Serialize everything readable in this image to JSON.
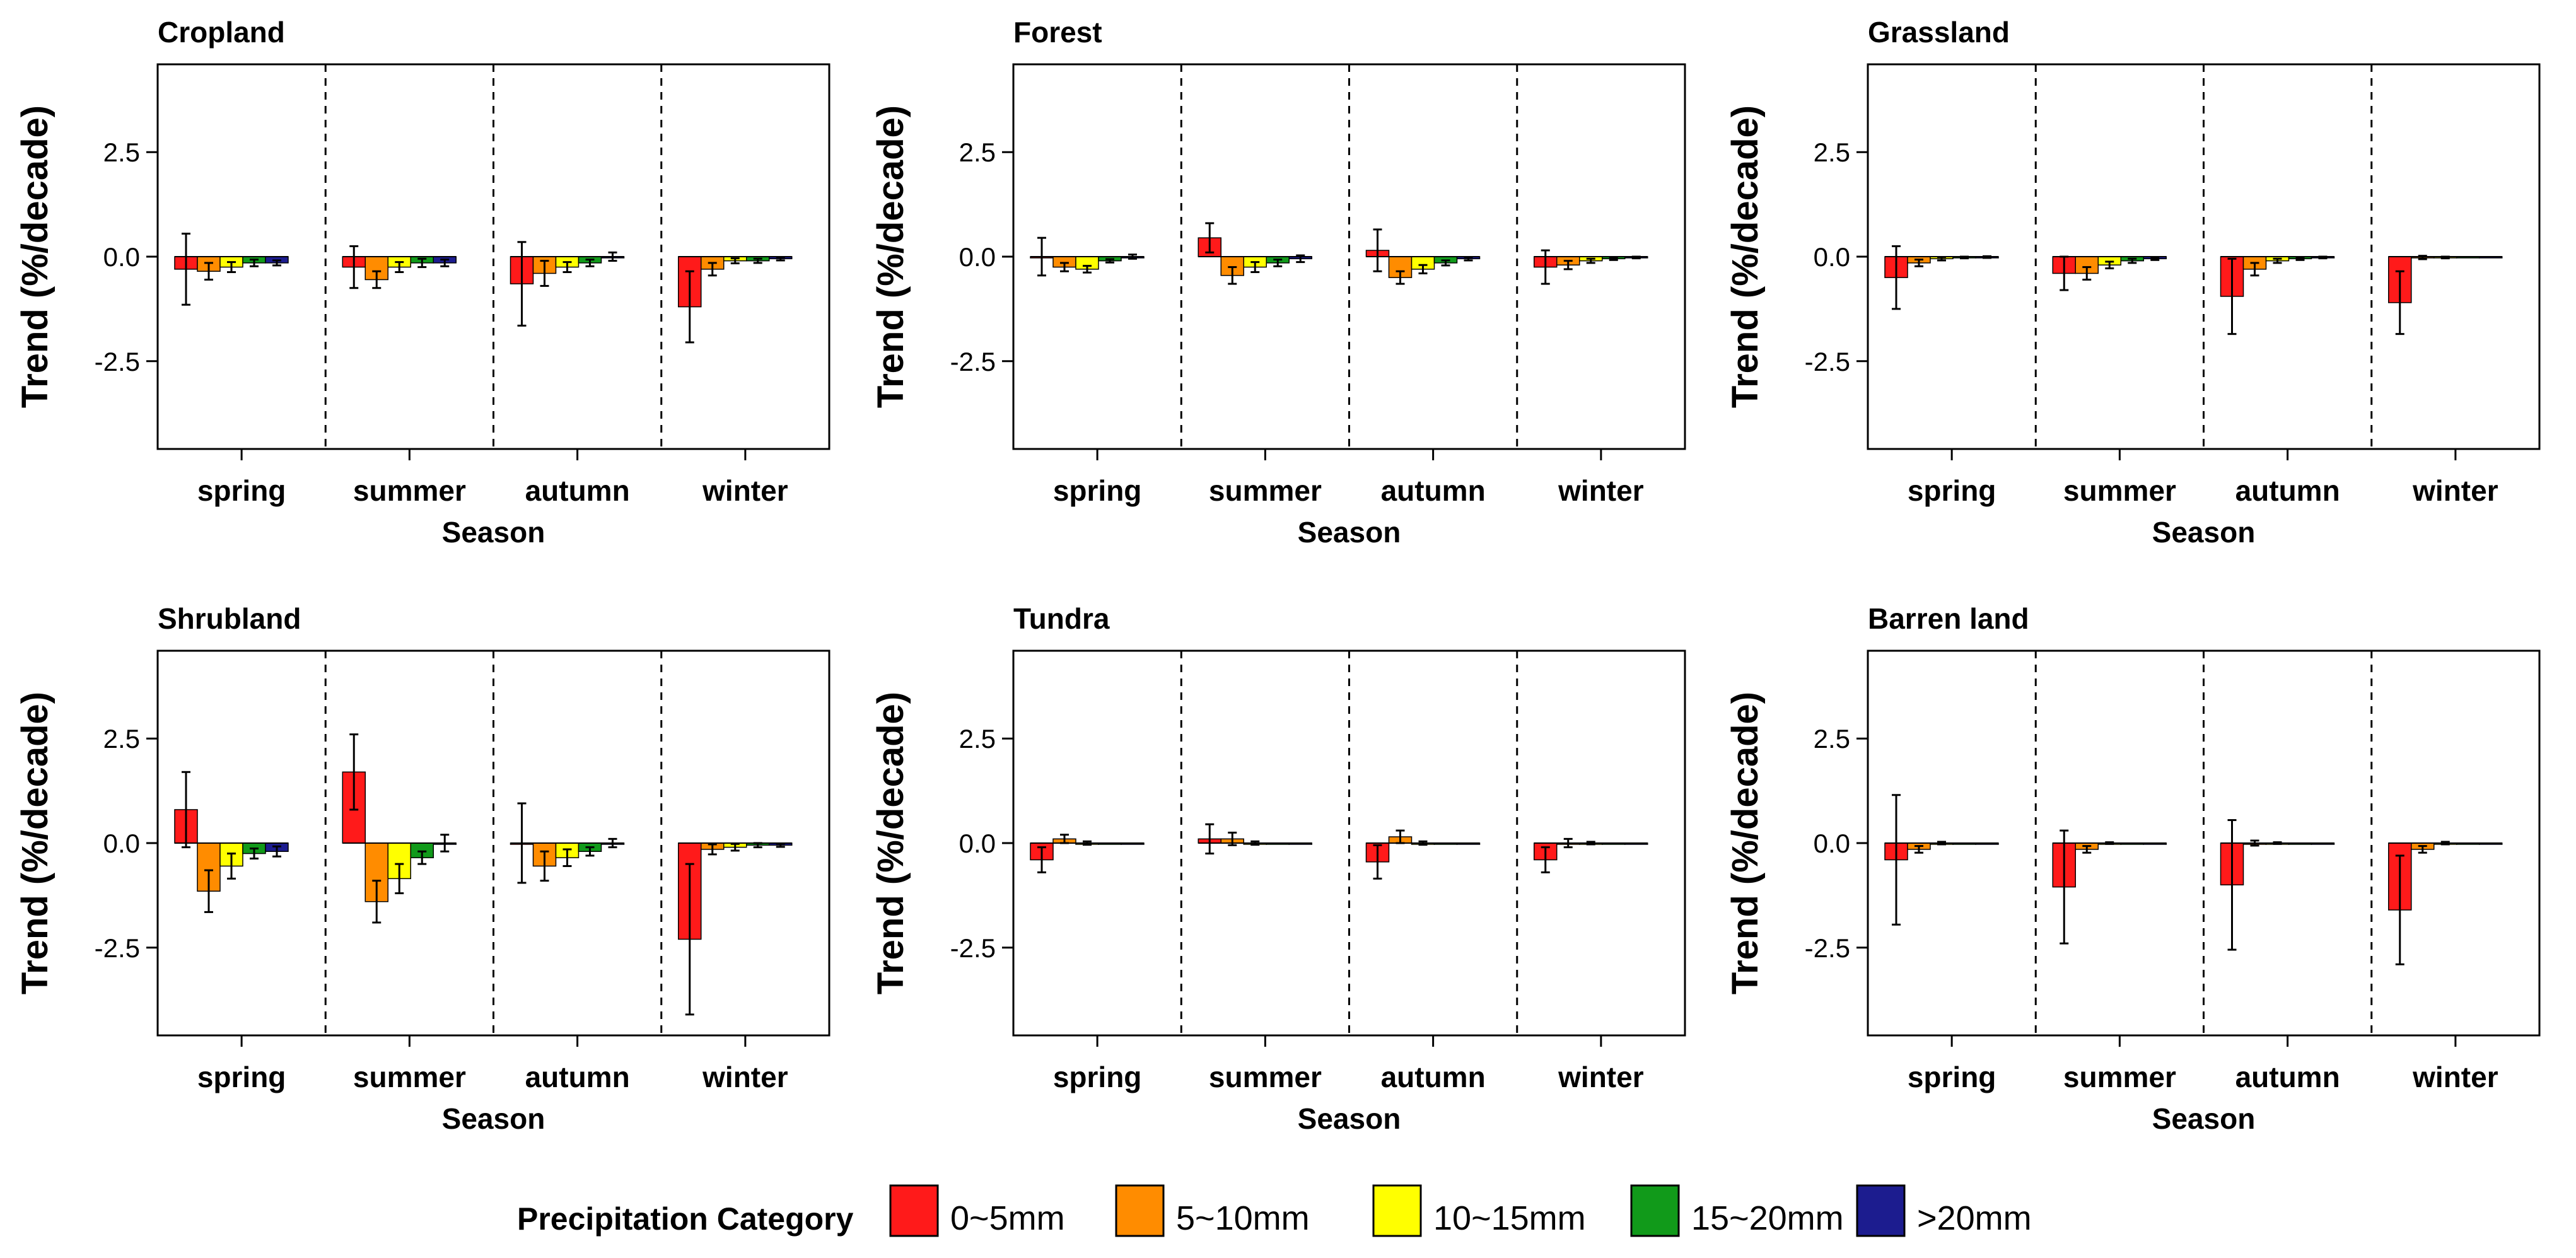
{
  "figure": {
    "shared": {
      "season_categories": [
        "spring",
        "summer",
        "autumn",
        "winter"
      ],
      "xlabel": "Season",
      "ylabel": "Trend (%/decade)",
      "yticks": [
        "2.5",
        "0.0",
        "-2.5"
      ],
      "ylim": [
        -4.6,
        4.6
      ]
    },
    "legend": {
      "title": "Precipitation Category",
      "entries": [
        "0~5mm",
        "5~10mm",
        "10~15mm",
        "15~20mm",
        ">20mm"
      ],
      "colors": [
        "#ff1a1a",
        "#ff8c00",
        "#ffff00",
        "#119a1a",
        "#1c1c8f"
      ],
      "placement": "bottom"
    }
  },
  "chart_data": [
    {
      "type": "bar",
      "title": "Cropland",
      "categories": [
        "spring",
        "summer",
        "autumn",
        "winter"
      ],
      "xlabel": "Season",
      "ylabel": "Trend (%/decade)",
      "ylim": [
        -4.6,
        4.6
      ],
      "series": [
        {
          "name": "0~5mm",
          "values": [
            -0.3,
            -0.25,
            -0.65,
            -1.2
          ],
          "errors": [
            0.85,
            0.5,
            1.0,
            0.85
          ]
        },
        {
          "name": "5~10mm",
          "values": [
            -0.35,
            -0.55,
            -0.4,
            -0.3
          ],
          "errors": [
            0.2,
            0.2,
            0.3,
            0.15
          ]
        },
        {
          "name": "10~15mm",
          "values": [
            -0.25,
            -0.25,
            -0.25,
            -0.1
          ],
          "errors": [
            0.12,
            0.12,
            0.12,
            0.06
          ]
        },
        {
          "name": "15~20mm",
          "values": [
            -0.15,
            -0.15,
            -0.15,
            -0.1
          ],
          "errors": [
            0.08,
            0.1,
            0.08,
            0.05
          ]
        },
        {
          "name": ">20mm",
          "values": [
            -0.15,
            -0.15,
            0.0,
            -0.05
          ],
          "errors": [
            0.06,
            0.08,
            0.1,
            0.04
          ]
        }
      ],
      "grid": false,
      "legend": "bottom"
    },
    {
      "type": "bar",
      "title": "Forest",
      "categories": [
        "spring",
        "summer",
        "autumn",
        "winter"
      ],
      "xlabel": "Season",
      "ylabel": "Trend (%/decade)",
      "ylim": [
        -4.6,
        4.6
      ],
      "series": [
        {
          "name": "0~5mm",
          "values": [
            0.0,
            0.45,
            0.15,
            -0.25
          ],
          "errors": [
            0.45,
            0.35,
            0.5,
            0.4
          ]
        },
        {
          "name": "5~10mm",
          "values": [
            -0.25,
            -0.45,
            -0.5,
            -0.2
          ],
          "errors": [
            0.1,
            0.2,
            0.15,
            0.1
          ]
        },
        {
          "name": "10~15mm",
          "values": [
            -0.3,
            -0.25,
            -0.3,
            -0.1
          ],
          "errors": [
            0.08,
            0.12,
            0.1,
            0.05
          ]
        },
        {
          "name": "15~20mm",
          "values": [
            -0.1,
            -0.15,
            -0.15,
            -0.05
          ],
          "errors": [
            0.04,
            0.08,
            0.06,
            0.03
          ]
        },
        {
          "name": ">20mm",
          "values": [
            0.0,
            -0.05,
            -0.05,
            -0.02
          ],
          "errors": [
            0.05,
            0.08,
            0.04,
            0.02
          ]
        }
      ],
      "grid": false,
      "legend": "bottom"
    },
    {
      "type": "bar",
      "title": "Grassland",
      "categories": [
        "spring",
        "summer",
        "autumn",
        "winter"
      ],
      "xlabel": "Season",
      "ylabel": "Trend (%/decade)",
      "ylim": [
        -4.6,
        4.6
      ],
      "series": [
        {
          "name": "0~5mm",
          "values": [
            -0.5,
            -0.4,
            -0.95,
            -1.1
          ],
          "errors": [
            0.75,
            0.4,
            0.9,
            0.75
          ]
        },
        {
          "name": "5~10mm",
          "values": [
            -0.15,
            -0.4,
            -0.3,
            -0.02
          ],
          "errors": [
            0.08,
            0.15,
            0.15,
            0.04
          ]
        },
        {
          "name": "10~15mm",
          "values": [
            -0.05,
            -0.2,
            -0.1,
            -0.02
          ],
          "errors": [
            0.04,
            0.08,
            0.05,
            0.02
          ]
        },
        {
          "name": "15~20mm",
          "values": [
            -0.02,
            -0.1,
            -0.05,
            -0.01
          ],
          "errors": [
            0.02,
            0.05,
            0.03,
            0.01
          ]
        },
        {
          "name": ">20mm",
          "values": [
            -0.01,
            -0.05,
            -0.02,
            -0.01
          ],
          "errors": [
            0.02,
            0.03,
            0.02,
            0.01
          ]
        }
      ],
      "grid": false,
      "legend": "bottom"
    },
    {
      "type": "bar",
      "title": "Shrubland",
      "categories": [
        "spring",
        "summer",
        "autumn",
        "winter"
      ],
      "xlabel": "Season",
      "ylabel": "Trend (%/decade)",
      "ylim": [
        -4.6,
        4.6
      ],
      "series": [
        {
          "name": "0~5mm",
          "values": [
            0.8,
            1.7,
            0.0,
            -2.3
          ],
          "errors": [
            0.9,
            0.9,
            0.95,
            1.8
          ]
        },
        {
          "name": "5~10mm",
          "values": [
            -1.15,
            -1.4,
            -0.55,
            -0.15
          ],
          "errors": [
            0.5,
            0.5,
            0.35,
            0.12
          ]
        },
        {
          "name": "10~15mm",
          "values": [
            -0.55,
            -0.85,
            -0.35,
            -0.1
          ],
          "errors": [
            0.3,
            0.35,
            0.2,
            0.08
          ]
        },
        {
          "name": "15~20mm",
          "values": [
            -0.25,
            -0.35,
            -0.2,
            -0.05
          ],
          "errors": [
            0.12,
            0.15,
            0.1,
            0.05
          ]
        },
        {
          "name": ">20mm",
          "values": [
            -0.2,
            0.0,
            0.0,
            -0.05
          ],
          "errors": [
            0.12,
            0.2,
            0.1,
            0.04
          ]
        }
      ],
      "grid": false,
      "legend": "bottom"
    },
    {
      "type": "bar",
      "title": "Tundra",
      "categories": [
        "spring",
        "summer",
        "autumn",
        "winter"
      ],
      "xlabel": "Season",
      "ylabel": "Trend (%/decade)",
      "ylim": [
        -4.6,
        4.6
      ],
      "series": [
        {
          "name": "0~5mm",
          "values": [
            -0.4,
            0.1,
            -0.45,
            -0.4
          ],
          "errors": [
            0.3,
            0.35,
            0.4,
            0.3
          ]
        },
        {
          "name": "5~10mm",
          "values": [
            0.1,
            0.1,
            0.15,
            0.0
          ],
          "errors": [
            0.1,
            0.15,
            0.15,
            0.1
          ]
        },
        {
          "name": "10~15mm",
          "values": [
            0.0,
            0.0,
            0.0,
            0.0
          ],
          "errors": [
            0.04,
            0.04,
            0.04,
            0.03
          ]
        },
        {
          "name": "15~20mm",
          "values": [
            0.0,
            0.0,
            0.0,
            0.0
          ],
          "errors": [
            0.0,
            0.0,
            0.0,
            0.0
          ]
        },
        {
          "name": ">20mm",
          "values": [
            0.0,
            0.0,
            0.0,
            0.0
          ],
          "errors": [
            0.0,
            0.0,
            0.0,
            0.0
          ]
        }
      ],
      "grid": false,
      "legend": "bottom"
    },
    {
      "type": "bar",
      "title": "Barren land",
      "categories": [
        "spring",
        "summer",
        "autumn",
        "winter"
      ],
      "xlabel": "Season",
      "ylabel": "Trend (%/decade)",
      "ylim": [
        -4.6,
        4.6
      ],
      "series": [
        {
          "name": "0~5mm",
          "values": [
            -0.4,
            -1.05,
            -1.0,
            -1.6
          ],
          "errors": [
            1.55,
            1.35,
            1.55,
            1.3
          ]
        },
        {
          "name": "5~10mm",
          "values": [
            -0.15,
            -0.15,
            0.0,
            -0.15
          ],
          "errors": [
            0.08,
            0.08,
            0.06,
            0.08
          ]
        },
        {
          "name": "10~15mm",
          "values": [
            0.0,
            0.0,
            0.0,
            0.0
          ],
          "errors": [
            0.03,
            0.02,
            0.02,
            0.03
          ]
        },
        {
          "name": "15~20mm",
          "values": [
            0.0,
            0.0,
            0.0,
            0.0
          ],
          "errors": [
            0.0,
            0.0,
            0.0,
            0.0
          ]
        },
        {
          "name": ">20mm",
          "values": [
            0.0,
            0.0,
            0.0,
            0.0
          ],
          "errors": [
            0.0,
            0.0,
            0.0,
            0.0
          ]
        }
      ],
      "grid": false,
      "legend": "bottom"
    }
  ]
}
